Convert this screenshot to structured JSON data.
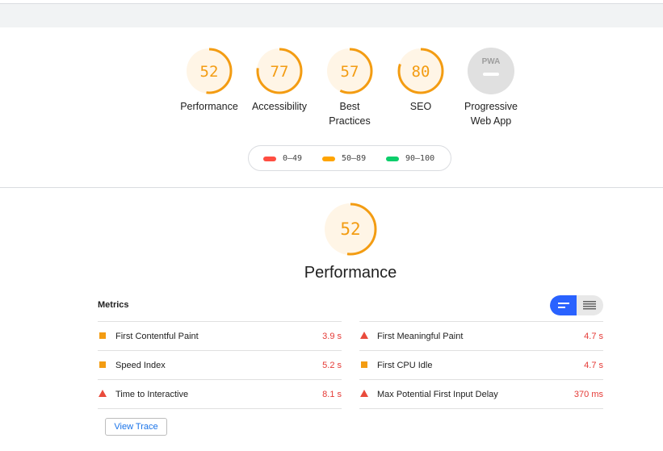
{
  "categories": [
    {
      "score": "52",
      "fraction": 0.52,
      "label_line1": "Performance",
      "label_line2": ""
    },
    {
      "score": "77",
      "fraction": 0.77,
      "label_line1": "Accessibility",
      "label_line2": ""
    },
    {
      "score": "57",
      "fraction": 0.57,
      "label_line1": "Best",
      "label_line2": "Practices"
    },
    {
      "score": "80",
      "fraction": 0.8,
      "label_line1": "SEO",
      "label_line2": ""
    }
  ],
  "pwa": {
    "badge": "PWA",
    "label_line1": "Progressive",
    "label_line2": "Web App"
  },
  "legend": [
    {
      "range": "0–49",
      "color": "#ff4e42"
    },
    {
      "range": "50–89",
      "color": "#ffa400"
    },
    {
      "range": "90–100",
      "color": "#0cce6b"
    }
  ],
  "performance": {
    "score": "52",
    "fraction": 0.52,
    "title": "Performance"
  },
  "metrics": {
    "label": "Metrics",
    "left": [
      {
        "name": "First Contentful Paint",
        "value": "3.9 s",
        "icon": "orange-square-icon"
      },
      {
        "name": "Speed Index",
        "value": "5.2 s",
        "icon": "orange-square-icon"
      },
      {
        "name": "Time to Interactive",
        "value": "8.1 s",
        "icon": "red-triangle-icon"
      }
    ],
    "right": [
      {
        "name": "First Meaningful Paint",
        "value": "4.7 s",
        "icon": "red-triangle-icon"
      },
      {
        "name": "First CPU Idle",
        "value": "4.7 s",
        "icon": "orange-square-icon"
      },
      {
        "name": "Max Potential First Input Delay",
        "value": "370 ms",
        "icon": "red-triangle-icon"
      }
    ]
  },
  "view_trace_label": "View Trace",
  "colors": {
    "average": "#f39c12",
    "fail": "#e94b3c",
    "accent": "#2962ff"
  }
}
